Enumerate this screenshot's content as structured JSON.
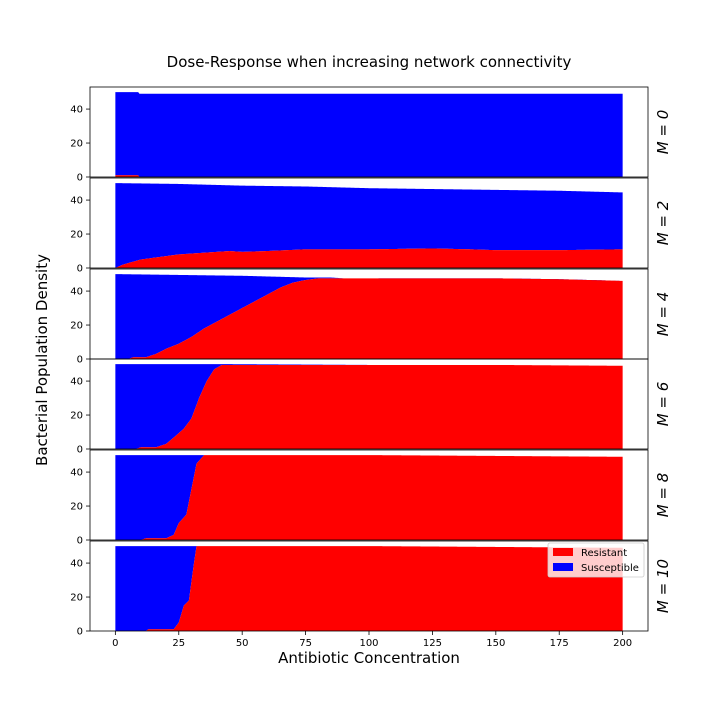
{
  "chart_data": {
    "type": "area",
    "title": "Dose-Response when increasing network connectivity",
    "xlabel": "Antibiotic Concentration",
    "ylabel": "Bacterial Population Density",
    "xlim": [
      -10,
      210
    ],
    "ylim": [
      0,
      53
    ],
    "xticks": [
      0,
      25,
      50,
      75,
      100,
      125,
      150,
      175,
      200
    ],
    "yticks": [
      0,
      20,
      40
    ],
    "stacked": true,
    "legend": {
      "placement": "lower-right",
      "panel": 5,
      "entries": [
        {
          "name": "Resistant",
          "color": "#ff0000"
        },
        {
          "name": "Susceptible",
          "color": "#0000ff"
        }
      ]
    },
    "colors": {
      "resistant": "#ff0000",
      "susceptible": "#0000ff"
    },
    "panels": [
      {
        "label": "M = 0",
        "resistant": [
          [
            0,
            1
          ],
          [
            9,
            1
          ],
          [
            9.5,
            0
          ],
          [
            200,
            0
          ]
        ],
        "total": [
          [
            0,
            50
          ],
          [
            9,
            50
          ],
          [
            9.5,
            49
          ],
          [
            200,
            49
          ]
        ]
      },
      {
        "label": "M = 2",
        "resistant": [
          [
            0,
            0
          ],
          [
            3,
            2
          ],
          [
            10,
            5
          ],
          [
            15,
            6
          ],
          [
            25,
            8
          ],
          [
            35,
            9
          ],
          [
            45,
            10
          ],
          [
            50,
            9.5
          ],
          [
            60,
            10
          ],
          [
            75,
            11
          ],
          [
            100,
            11
          ],
          [
            125,
            11.5
          ],
          [
            140,
            11
          ],
          [
            150,
            10.5
          ],
          [
            175,
            10.5
          ],
          [
            200,
            11
          ]
        ],
        "total": [
          [
            0,
            50
          ],
          [
            25,
            49.5
          ],
          [
            50,
            48.5
          ],
          [
            75,
            48
          ],
          [
            100,
            47
          ],
          [
            125,
            46.5
          ],
          [
            150,
            46
          ],
          [
            175,
            45.5
          ],
          [
            200,
            44.5
          ]
        ]
      },
      {
        "label": "M = 4",
        "resistant": [
          [
            0,
            0
          ],
          [
            5,
            0
          ],
          [
            7,
            1
          ],
          [
            12,
            1
          ],
          [
            16,
            3
          ],
          [
            20,
            6
          ],
          [
            25,
            9
          ],
          [
            30,
            13
          ],
          [
            35,
            18
          ],
          [
            40,
            22
          ],
          [
            45,
            26
          ],
          [
            50,
            30
          ],
          [
            55,
            34
          ],
          [
            60,
            38
          ],
          [
            65,
            42
          ],
          [
            70,
            45
          ],
          [
            75,
            46.5
          ],
          [
            80,
            47.5
          ],
          [
            90,
            47.5
          ],
          [
            100,
            47.5
          ],
          [
            125,
            47.5
          ],
          [
            150,
            47.5
          ],
          [
            175,
            47
          ],
          [
            200,
            46
          ]
        ],
        "total": [
          [
            0,
            50
          ],
          [
            50,
            49
          ],
          [
            75,
            48
          ],
          [
            85,
            48
          ],
          [
            90,
            47.5
          ],
          [
            100,
            47.5
          ],
          [
            200,
            46
          ]
        ]
      },
      {
        "label": "M = 6",
        "resistant": [
          [
            0,
            0
          ],
          [
            8,
            0
          ],
          [
            10,
            1
          ],
          [
            16,
            1
          ],
          [
            20,
            3
          ],
          [
            24,
            8
          ],
          [
            27,
            12
          ],
          [
            30,
            18
          ],
          [
            33,
            30
          ],
          [
            36,
            40
          ],
          [
            39,
            47
          ],
          [
            42,
            49.5
          ],
          [
            60,
            49.5
          ],
          [
            100,
            49.5
          ],
          [
            150,
            49.5
          ],
          [
            200,
            49
          ]
        ],
        "total": [
          [
            0,
            50
          ],
          [
            40,
            50
          ],
          [
            100,
            49.5
          ],
          [
            150,
            49.5
          ],
          [
            200,
            49
          ]
        ]
      },
      {
        "label": "M = 8",
        "resistant": [
          [
            0,
            0
          ],
          [
            10,
            0
          ],
          [
            12,
            1
          ],
          [
            20,
            1
          ],
          [
            23,
            3
          ],
          [
            25,
            10
          ],
          [
            28,
            15
          ],
          [
            30,
            30
          ],
          [
            32,
            45
          ],
          [
            35,
            50
          ],
          [
            100,
            50
          ],
          [
            150,
            49.5
          ],
          [
            200,
            49
          ]
        ],
        "total": [
          [
            0,
            50
          ],
          [
            100,
            50
          ],
          [
            150,
            49.5
          ],
          [
            200,
            49
          ]
        ]
      },
      {
        "label": "M = 10",
        "resistant": [
          [
            0,
            0
          ],
          [
            12,
            0
          ],
          [
            13,
            1
          ],
          [
            23,
            1
          ],
          [
            25,
            5
          ],
          [
            27,
            15
          ],
          [
            29,
            18
          ],
          [
            31,
            40
          ],
          [
            32,
            50
          ],
          [
            100,
            50
          ],
          [
            150,
            49.5
          ],
          [
            200,
            49
          ]
        ],
        "total": [
          [
            0,
            50
          ],
          [
            100,
            50
          ],
          [
            150,
            49.5
          ],
          [
            200,
            49
          ]
        ]
      }
    ]
  }
}
